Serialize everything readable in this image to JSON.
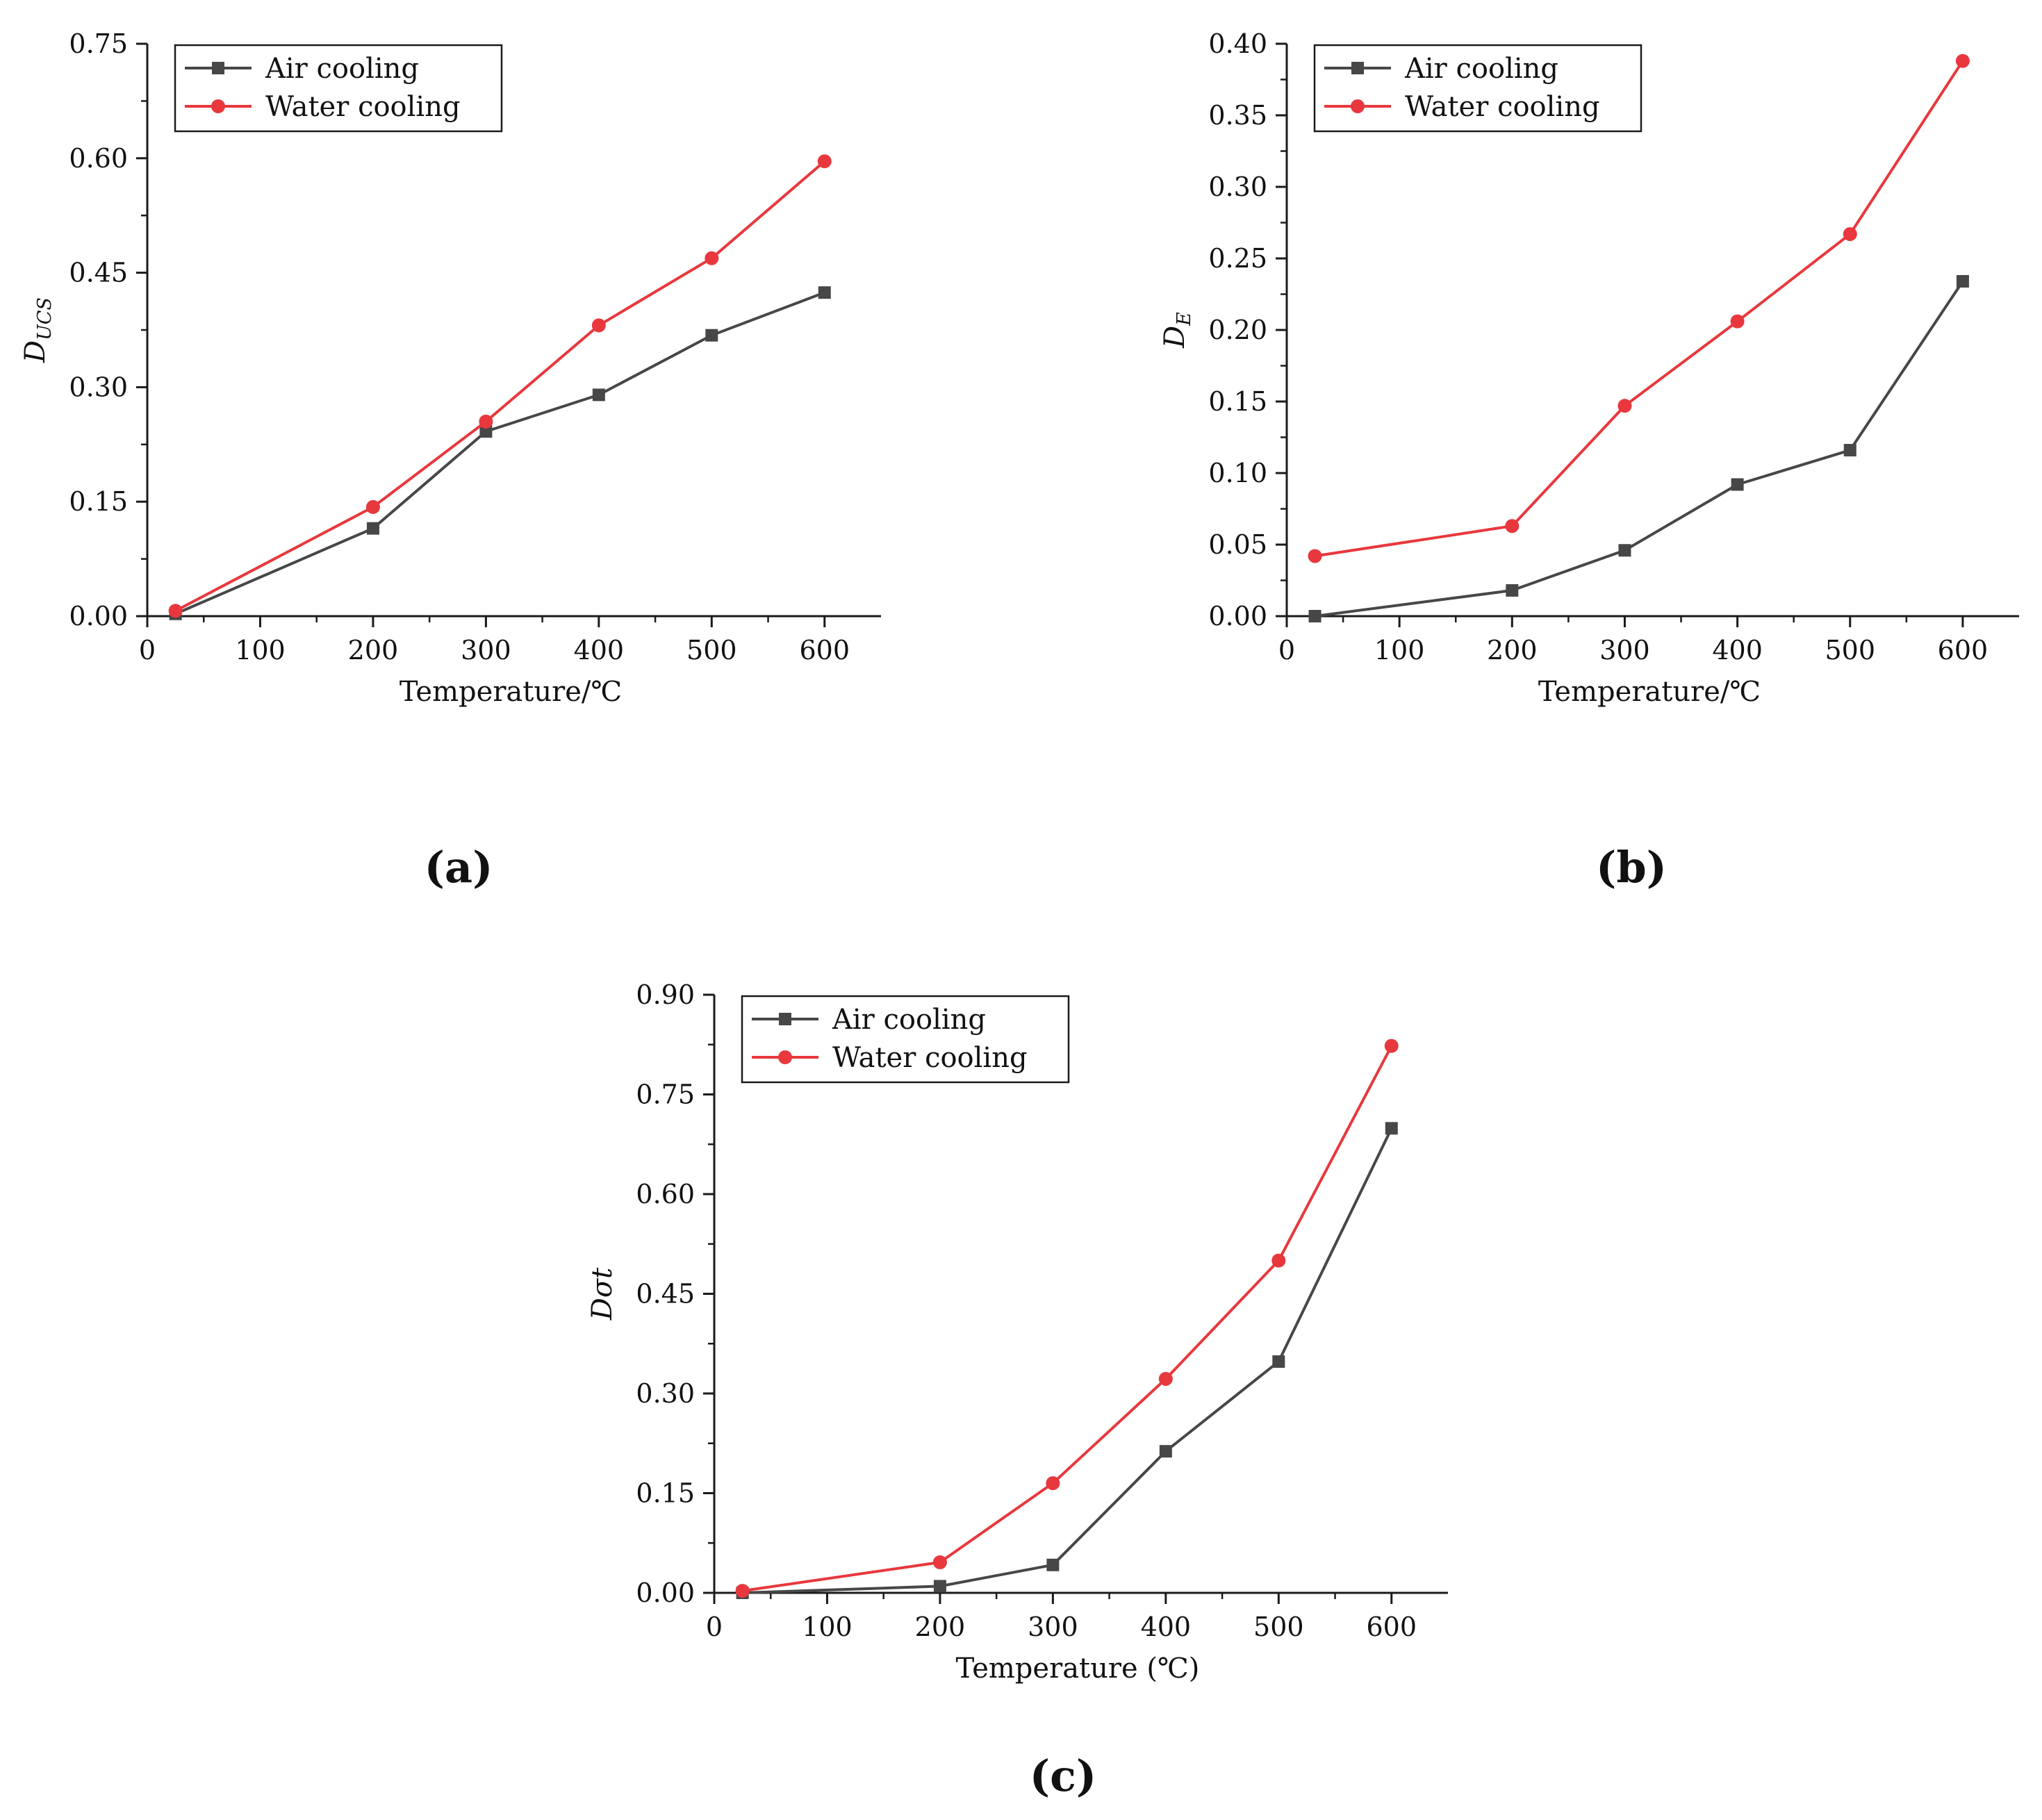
{
  "colors": {
    "air": "#474747",
    "water": "#e8383d",
    "axis": "#1a1a1a",
    "text": "#111111"
  },
  "legend_labels": {
    "air": "Air cooling",
    "water": "Water cooling"
  },
  "captions": {
    "a": "(a)",
    "b": "(b)",
    "c": "(c)"
  },
  "chart_data": [
    {
      "id": "a",
      "type": "line",
      "title": "",
      "xlabel": "Temperature/℃",
      "ylabel": "D",
      "ylabel_sub": "UCS",
      "xlim": [
        0,
        650
      ],
      "ylim": [
        0,
        0.75
      ],
      "xticks": [
        0,
        100,
        200,
        300,
        400,
        500,
        600
      ],
      "yticks": [
        0,
        0.15,
        0.3,
        0.45,
        0.6,
        0.75
      ],
      "ytick_labels": [
        "0.00",
        "0.15",
        "0.30",
        "0.45",
        "0.60",
        "0.75"
      ],
      "legend_position": "top-left",
      "x": [
        25,
        200,
        300,
        400,
        500,
        600
      ],
      "series": [
        {
          "name": "Air cooling",
          "key": "air",
          "marker": "square",
          "values": [
            0.003,
            0.115,
            0.242,
            0.29,
            0.368,
            0.424
          ]
        },
        {
          "name": "Water cooling",
          "key": "water",
          "marker": "circle",
          "values": [
            0.007,
            0.143,
            0.255,
            0.381,
            0.469,
            0.596
          ]
        }
      ]
    },
    {
      "id": "b",
      "type": "line",
      "title": "",
      "xlabel": "Temperature/℃",
      "ylabel": "D",
      "ylabel_sub": "E",
      "xlim": [
        0,
        650
      ],
      "ylim": [
        0,
        0.4
      ],
      "xticks": [
        0,
        100,
        200,
        300,
        400,
        500,
        600
      ],
      "yticks": [
        0,
        0.05,
        0.1,
        0.15,
        0.2,
        0.25,
        0.3,
        0.35,
        0.4
      ],
      "ytick_labels": [
        "0.00",
        "0.05",
        "0.10",
        "0.15",
        "0.20",
        "0.25",
        "0.30",
        "0.35",
        "0.40"
      ],
      "legend_position": "top-left",
      "x": [
        25,
        200,
        300,
        400,
        500,
        600
      ],
      "series": [
        {
          "name": "Air cooling",
          "key": "air",
          "marker": "square",
          "values": [
            0.0,
            0.018,
            0.046,
            0.092,
            0.116,
            0.234
          ]
        },
        {
          "name": "Water cooling",
          "key": "water",
          "marker": "circle",
          "values": [
            0.042,
            0.063,
            0.147,
            0.206,
            0.267,
            0.388
          ]
        }
      ]
    },
    {
      "id": "c",
      "type": "line",
      "title": "",
      "xlabel": "Temperature (℃)",
      "ylabel": "Dσt",
      "ylabel_sub": "",
      "xlim": [
        0,
        650
      ],
      "ylim": [
        0,
        0.9
      ],
      "xticks": [
        0,
        100,
        200,
        300,
        400,
        500,
        600
      ],
      "yticks": [
        0,
        0.15,
        0.3,
        0.45,
        0.6,
        0.75,
        0.9
      ],
      "ytick_labels": [
        "0.00",
        "0.15",
        "0.30",
        "0.45",
        "0.60",
        "0.75",
        "0.90"
      ],
      "legend_position": "top-left",
      "x": [
        25,
        200,
        300,
        400,
        500,
        600
      ],
      "series": [
        {
          "name": "Air cooling",
          "key": "air",
          "marker": "square",
          "values": [
            0.0,
            0.01,
            0.042,
            0.213,
            0.348,
            0.699
          ]
        },
        {
          "name": "Water cooling",
          "key": "water",
          "marker": "circle",
          "values": [
            0.003,
            0.046,
            0.165,
            0.322,
            0.5,
            0.823
          ]
        }
      ]
    }
  ]
}
